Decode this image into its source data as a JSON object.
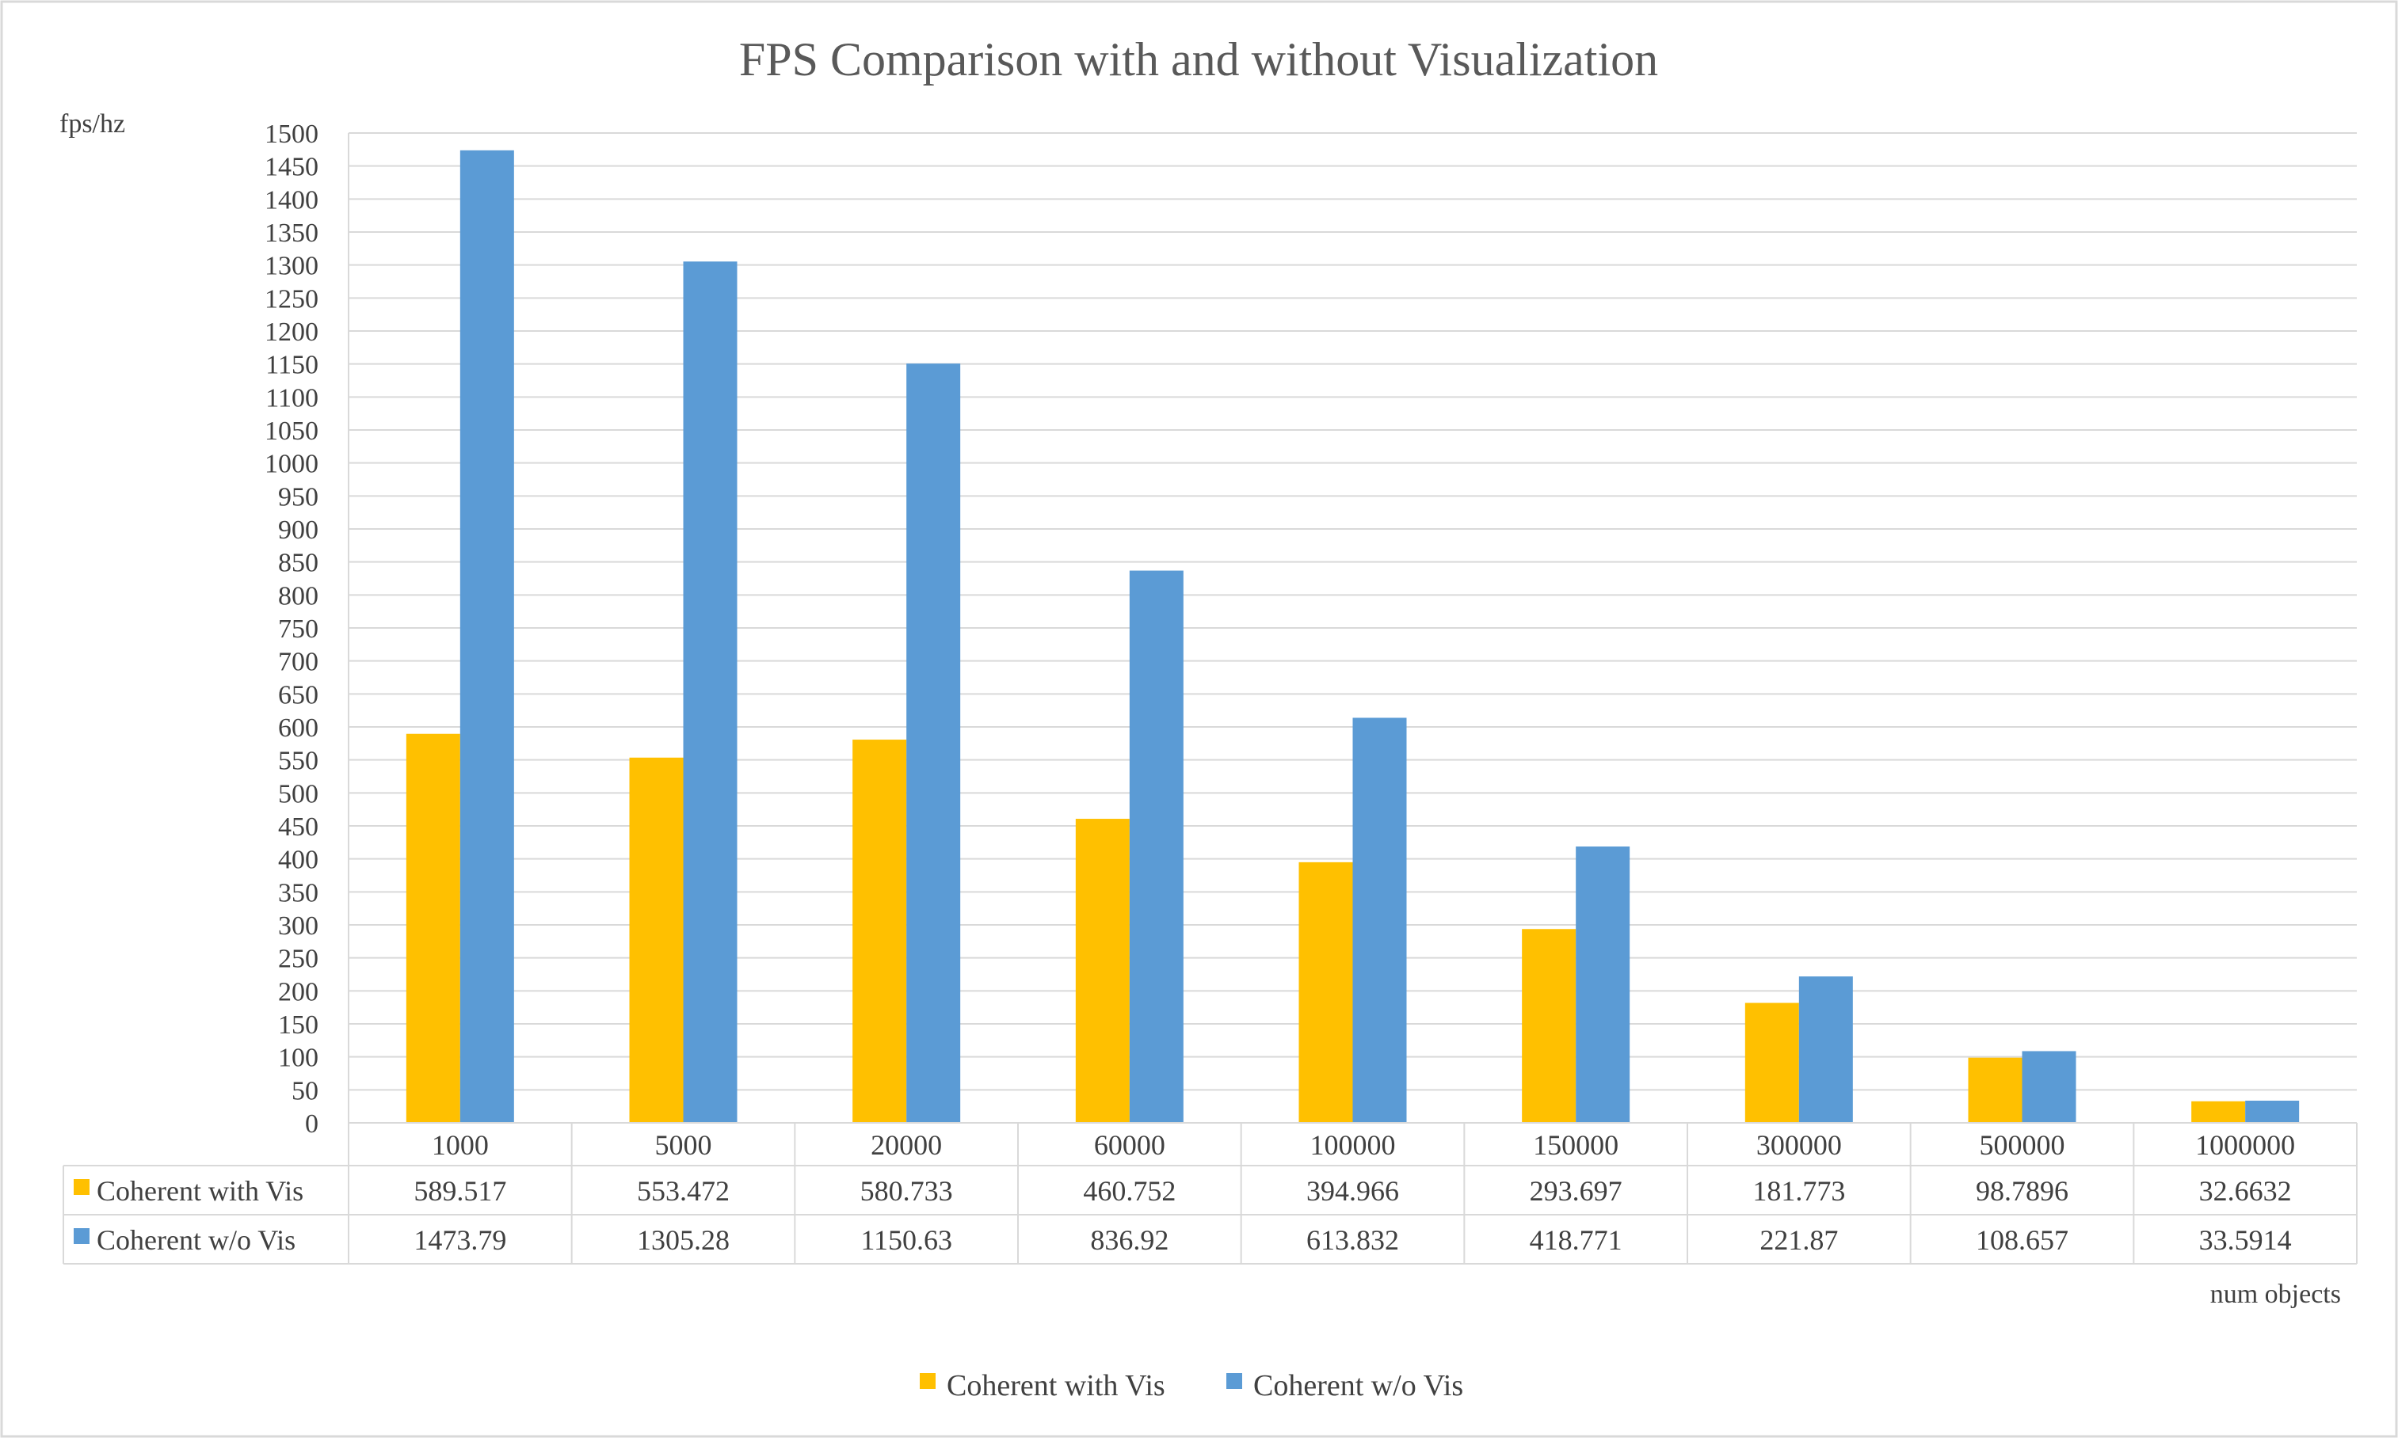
{
  "chart_data": {
    "type": "bar",
    "title": "FPS Comparison with and without Visualization",
    "xlabel": "num objects",
    "ylabel": "fps/hz",
    "ylim": [
      0,
      1500
    ],
    "y_ticks": [
      0,
      50,
      100,
      150,
      200,
      250,
      300,
      350,
      400,
      450,
      500,
      550,
      600,
      650,
      700,
      750,
      800,
      850,
      900,
      950,
      1000,
      1050,
      1100,
      1150,
      1200,
      1250,
      1300,
      1350,
      1400,
      1450,
      1500
    ],
    "categories": [
      "1000",
      "5000",
      "20000",
      "60000",
      "100000",
      "150000",
      "300000",
      "500000",
      "1000000"
    ],
    "series": [
      {
        "name": "Coherent with Vis",
        "color": "#FFC000",
        "values": [
          589.517,
          553.472,
          580.733,
          460.752,
          394.966,
          293.697,
          181.773,
          98.7896,
          32.6632
        ],
        "labels": [
          "589.517",
          "553.472",
          "580.733",
          "460.752",
          "394.966",
          "293.697",
          "181.773",
          "98.7896",
          "32.6632"
        ]
      },
      {
        "name": "Coherent w/o Vis",
        "color": "#5B9BD5",
        "values": [
          1473.79,
          1305.28,
          1150.63,
          836.92,
          613.832,
          418.771,
          221.87,
          108.657,
          33.5914
        ],
        "labels": [
          "1473.79",
          "1305.28",
          "1150.63",
          "836.92",
          "613.832",
          "418.771",
          "221.87",
          "108.657",
          "33.5914"
        ]
      }
    ],
    "grid": true,
    "legend_position": "bottom",
    "data_table": true
  }
}
